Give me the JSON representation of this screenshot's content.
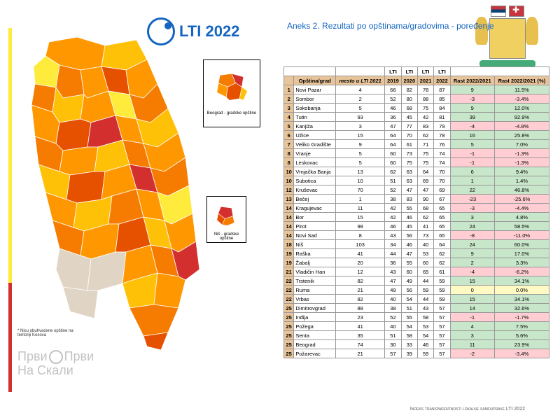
{
  "logo_text": "LTI 2022",
  "title": "Aneks 2. Rezultati po opštinama/gradovima - poređenje",
  "inset1_label": "Beograd - gradske opštine",
  "inset2_label": "Niš - gradske opštine",
  "footnote": "* Nisu obuhvaćene opštine na teritoriji Kosova",
  "watermark_line1a": "Први",
  "watermark_line1b": "Први",
  "watermark_line2": "На Скали",
  "bottom_note": "Indeks transparentnosti lokalne samouprave LTI 2022",
  "headers": {
    "blank_lti": "LTI",
    "col_name": "Opština/grad",
    "col_mesto": "mesto u LTI 2021",
    "col_2019": "2019",
    "col_2020": "2020",
    "col_2021": "2021",
    "col_2022": "2022",
    "col_rast_abs": "Rast 2022/2021",
    "col_rast_pct": "Rast 2022/2021 (%)"
  },
  "rows": [
    {
      "r": 1,
      "n": "Novi Pazar",
      "m": 4,
      "y19": 66,
      "y20": 82,
      "y21": 78,
      "y22": 87,
      "abs": 9,
      "pct": "11.5%"
    },
    {
      "r": 2,
      "n": "Sombor",
      "m": 2,
      "y19": 52,
      "y20": 80,
      "y21": 88,
      "y22": 85,
      "abs": -3,
      "pct": "-3.4%"
    },
    {
      "r": 3,
      "n": "Sokobanja",
      "m": 5,
      "y19": 46,
      "y20": 68,
      "y21": 75,
      "y22": 84,
      "abs": 9,
      "pct": "12.0%"
    },
    {
      "r": 4,
      "n": "Tutin",
      "m": 93,
      "y19": 36,
      "y20": 45,
      "y21": 42,
      "y22": 81,
      "abs": 39,
      "pct": "92.9%"
    },
    {
      "r": 5,
      "n": "Kanjiža",
      "m": 3,
      "y19": 47,
      "y20": 77,
      "y21": 83,
      "y22": 79,
      "abs": -4,
      "pct": "-4.8%"
    },
    {
      "r": 6,
      "n": "Užice",
      "m": 15,
      "y19": 64,
      "y20": 70,
      "y21": 62,
      "y22": 78,
      "abs": 16,
      "pct": "25.8%"
    },
    {
      "r": 7,
      "n": "Veliko Gradište",
      "m": 9,
      "y19": 64,
      "y20": 61,
      "y21": 71,
      "y22": 76,
      "abs": 5,
      "pct": "7.0%"
    },
    {
      "r": 8,
      "n": "Vranje",
      "m": 5,
      "y19": 60,
      "y20": 73,
      "y21": 75,
      "y22": 74,
      "abs": -1,
      "pct": "-1.3%"
    },
    {
      "r": 8,
      "n": "Leskovac",
      "m": 5,
      "y19": 60,
      "y20": 75,
      "y21": 75,
      "y22": 74,
      "abs": -1,
      "pct": "-1.3%"
    },
    {
      "r": 10,
      "n": "Vrnjačka Banja",
      "m": 13,
      "y19": 62,
      "y20": 63,
      "y21": 64,
      "y22": 70,
      "abs": 6,
      "pct": "9.4%"
    },
    {
      "r": 10,
      "n": "Subotica",
      "m": 10,
      "y19": 51,
      "y20": 63,
      "y21": 69,
      "y22": 70,
      "abs": 1,
      "pct": "1.4%"
    },
    {
      "r": 12,
      "n": "Kruševac",
      "m": 70,
      "y19": 52,
      "y20": 47,
      "y21": 47,
      "y22": 69,
      "abs": 22,
      "pct": "46.8%"
    },
    {
      "r": 13,
      "n": "Bečej",
      "m": 1,
      "y19": 38,
      "y20": 83,
      "y21": 90,
      "y22": 67,
      "abs": -23,
      "pct": "-25.6%"
    },
    {
      "r": 14,
      "n": "Kragujevac",
      "m": 11,
      "y19": 42,
      "y20": 55,
      "y21": 68,
      "y22": 65,
      "abs": -3,
      "pct": "-4.4%"
    },
    {
      "r": 14,
      "n": "Bor",
      "m": 15,
      "y19": 42,
      "y20": 46,
      "y21": 62,
      "y22": 65,
      "abs": 3,
      "pct": "4.8%"
    },
    {
      "r": 14,
      "n": "Pirot",
      "m": 98,
      "y19": 46,
      "y20": 45,
      "y21": 41,
      "y22": 65,
      "abs": 24,
      "pct": "58.5%"
    },
    {
      "r": 14,
      "n": "Novi Sad",
      "m": 8,
      "y19": 43,
      "y20": 56,
      "y21": 73,
      "y22": 65,
      "abs": -8,
      "pct": "-11.0%"
    },
    {
      "r": 18,
      "n": "Niš",
      "m": 103,
      "y19": 34,
      "y20": 46,
      "y21": 40,
      "y22": 64,
      "abs": 24,
      "pct": "60.0%"
    },
    {
      "r": 19,
      "n": "Raška",
      "m": 41,
      "y19": 44,
      "y20": 47,
      "y21": 53,
      "y22": 62,
      "abs": 9,
      "pct": "17.0%"
    },
    {
      "r": 19,
      "n": "Žabalj",
      "m": 20,
      "y19": 36,
      "y20": 55,
      "y21": 60,
      "y22": 62,
      "abs": 2,
      "pct": "3.3%"
    },
    {
      "r": 21,
      "n": "Vladičin Han",
      "m": 12,
      "y19": 43,
      "y20": 60,
      "y21": 65,
      "y22": 61,
      "abs": -4,
      "pct": "-6.2%"
    },
    {
      "r": 22,
      "n": "Trstenik",
      "m": 82,
      "y19": 47,
      "y20": 49,
      "y21": 44,
      "y22": 59,
      "abs": 15,
      "pct": "34.1%"
    },
    {
      "r": 22,
      "n": "Ruma",
      "m": 21,
      "y19": 49,
      "y20": 56,
      "y21": 59,
      "y22": 59,
      "abs": 0,
      "pct": "0.0%"
    },
    {
      "r": 22,
      "n": "Vrbas",
      "m": 82,
      "y19": 40,
      "y20": 54,
      "y21": 44,
      "y22": 59,
      "abs": 15,
      "pct": "34.1%"
    },
    {
      "r": 25,
      "n": "Dimitrovgrad",
      "m": 88,
      "y19": 38,
      "y20": 51,
      "y21": 43,
      "y22": 57,
      "abs": 14,
      "pct": "32.6%"
    },
    {
      "r": 25,
      "n": "Inđija",
      "m": 23,
      "y19": 52,
      "y20": 55,
      "y21": 58,
      "y22": 57,
      "abs": -1,
      "pct": "-1.7%"
    },
    {
      "r": 25,
      "n": "Požega",
      "m": 41,
      "y19": 40,
      "y20": 54,
      "y21": 53,
      "y22": 57,
      "abs": 4,
      "pct": "7.5%"
    },
    {
      "r": 25,
      "n": "Senta",
      "m": 35,
      "y19": 51,
      "y20": 58,
      "y21": 54,
      "y22": 57,
      "abs": 3,
      "pct": "5.6%"
    },
    {
      "r": 25,
      "n": "Beograd",
      "m": 74,
      "y19": 30,
      "y20": 33,
      "y21": 46,
      "y22": 57,
      "abs": 11,
      "pct": "23.9%"
    },
    {
      "r": 25,
      "n": "Požarevac",
      "m": 21,
      "y19": 57,
      "y20": 39,
      "y21": 59,
      "y22": 57,
      "abs": -2,
      "pct": "-3.4%"
    }
  ],
  "map_colors": [
    "#ffeb3b",
    "#ffc107",
    "#ff9800",
    "#f57c00",
    "#e65100",
    "#d32f2f",
    "#e0d5c5"
  ]
}
